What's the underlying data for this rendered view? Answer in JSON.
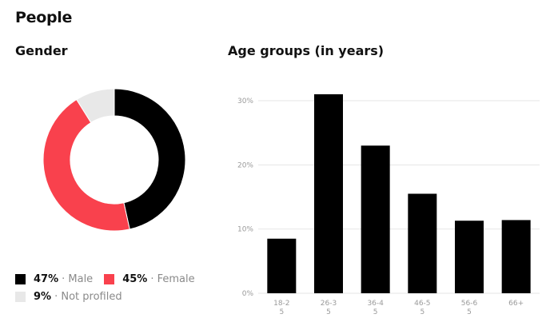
{
  "page": {
    "title": "People"
  },
  "gender": {
    "heading": "Gender",
    "segments": [
      {
        "label": "Male",
        "pct_text": "47%",
        "value": 47,
        "color": "#000000"
      },
      {
        "label": "Female",
        "pct_text": "45%",
        "value": 45,
        "color": "#f9414d"
      },
      {
        "label": "Not profiled",
        "pct_text": "9%",
        "value": 9,
        "color": "#e8e8e8"
      }
    ]
  },
  "age": {
    "heading": "Age groups (in years)"
  },
  "chart_data": [
    {
      "type": "pie",
      "categories": [
        "Male",
        "Female",
        "Not profiled"
      ],
      "values": [
        47,
        45,
        9
      ]
    },
    {
      "type": "bar",
      "categories": [
        [
          "18-2",
          "5"
        ],
        [
          "26-3",
          "5"
        ],
        [
          "36-4",
          "5"
        ],
        [
          "46-5",
          "5"
        ],
        [
          "56-6",
          "5"
        ],
        [
          "66+",
          ""
        ]
      ],
      "values": [
        8.5,
        31,
        23,
        15.5,
        11.3,
        11.4
      ],
      "yticks": [
        "0%",
        "10%",
        "20%",
        "30%"
      ],
      "ylim": [
        0,
        30
      ],
      "grid": true,
      "bar_color": "#000000"
    }
  ]
}
